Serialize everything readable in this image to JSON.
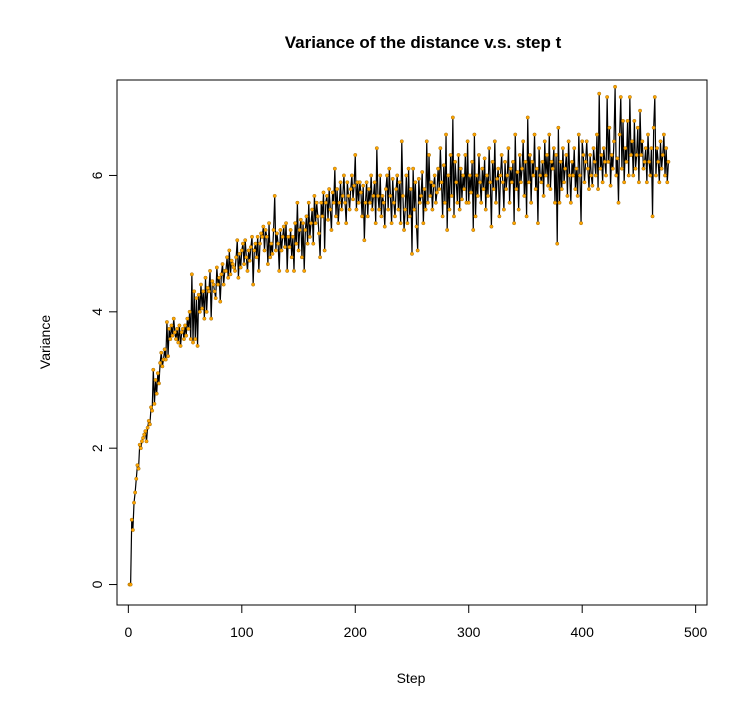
{
  "chart_data": {
    "type": "line",
    "title": "Variance of the distance v.s. step t",
    "xlabel": "Step",
    "ylabel": "Variance",
    "xlim": [
      -10,
      510
    ],
    "ylim": [
      -0.3,
      7.4
    ],
    "x_ticks": [
      0,
      100,
      200,
      300,
      400,
      500
    ],
    "y_ticks": [
      0,
      2,
      4,
      6
    ],
    "grid": false,
    "legend": "none",
    "line_color": "#000000",
    "point_color": "#ffa500",
    "point_edge_color": "#8a5a00",
    "series": [
      {
        "x_start": 1,
        "x_step": 1,
        "values": [
          0.0,
          0.0,
          0.95,
          0.8,
          1.2,
          1.35,
          1.55,
          1.75,
          1.7,
          2.05,
          2.0,
          2.1,
          2.15,
          2.2,
          2.25,
          2.1,
          2.3,
          2.4,
          2.35,
          2.6,
          2.55,
          3.15,
          2.65,
          3.0,
          2.8,
          3.1,
          2.95,
          3.25,
          3.4,
          3.2,
          3.3,
          3.45,
          3.3,
          3.85,
          3.35,
          3.75,
          3.6,
          3.8,
          3.65,
          3.9,
          3.7,
          3.6,
          3.75,
          3.55,
          3.8,
          3.5,
          3.7,
          3.75,
          3.6,
          3.8,
          3.65,
          3.9,
          3.75,
          4.0,
          3.6,
          4.55,
          3.55,
          4.3,
          3.6,
          4.2,
          3.5,
          4.25,
          4.0,
          4.4,
          4.05,
          4.3,
          3.9,
          4.5,
          4.0,
          4.35,
          4.3,
          4.6,
          3.9,
          4.45,
          4.4,
          4.3,
          4.2,
          4.65,
          4.4,
          4.5,
          4.15,
          4.55,
          4.7,
          4.4,
          4.6,
          4.6,
          4.8,
          4.5,
          4.9,
          4.55,
          4.75,
          4.7,
          4.65,
          4.6,
          4.8,
          5.05,
          4.5,
          4.85,
          4.65,
          4.9,
          5.0,
          4.7,
          5.05,
          4.8,
          4.6,
          4.9,
          4.75,
          4.95,
          5.1,
          4.4,
          4.9,
          5.0,
          4.8,
          5.1,
          4.6,
          5.0,
          5.15,
          5.1,
          5.25,
          4.9,
          5.2,
          5.1,
          4.7,
          5.3,
          4.8,
          5.0,
          4.85,
          5.2,
          5.7,
          4.9,
          5.15,
          5.0,
          4.6,
          5.2,
          4.9,
          5.1,
          5.25,
          4.95,
          5.3,
          4.6,
          5.1,
          4.95,
          5.2,
          4.8,
          5.1,
          4.6,
          5.3,
          5.0,
          5.6,
          4.9,
          5.2,
          5.35,
          4.8,
          5.3,
          4.6,
          5.2,
          5.4,
          5.0,
          5.6,
          5.1,
          5.3,
          5.5,
          5.0,
          5.7,
          5.3,
          5.6,
          5.4,
          5.15,
          4.8,
          5.6,
          5.4,
          5.75,
          4.9,
          5.6,
          5.7,
          5.35,
          5.8,
          5.5,
          5.2,
          5.75,
          5.6,
          6.1,
          5.4,
          5.8,
          5.3,
          5.6,
          5.9,
          5.5,
          5.7,
          6.0,
          5.6,
          5.3,
          5.9,
          5.7,
          5.5,
          5.8,
          6.0,
          5.65,
          5.85,
          6.3,
          5.5,
          5.9,
          5.6,
          5.9,
          5.75,
          5.4,
          5.85,
          5.05,
          5.6,
          5.9,
          5.4,
          5.8,
          5.6,
          6.0,
          5.5,
          5.7,
          5.9,
          5.3,
          6.4,
          5.7,
          5.5,
          6.0,
          5.4,
          5.7,
          5.6,
          5.25,
          5.8,
          6.0,
          5.5,
          6.1,
          5.7,
          5.3,
          5.95,
          5.6,
          5.4,
          5.8,
          6.0,
          5.5,
          5.9,
          5.3,
          6.5,
          5.7,
          5.2,
          5.5,
          6.0,
          5.3,
          6.1,
          5.4,
          5.8,
          4.85,
          6.1,
          5.5,
          5.9,
          5.25,
          4.9,
          5.95,
          5.6,
          5.7,
          6.05,
          5.3,
          5.8,
          5.5,
          6.5,
          5.6,
          6.3,
          5.7,
          5.9,
          5.5,
          5.85,
          6.0,
          5.6,
          5.75,
          6.1,
          5.8,
          6.4,
          5.9,
          5.4,
          6.15,
          5.6,
          6.6,
          5.2,
          6.0,
          5.5,
          6.3,
          5.7,
          6.85,
          5.4,
          6.2,
          5.9,
          5.6,
          6.3,
          5.5,
          6.1,
          5.65,
          6.0,
          5.8,
          6.3,
          5.6,
          6.5,
          5.6,
          6.0,
          5.75,
          6.2,
          5.2,
          6.6,
          5.4,
          6.0,
          5.7,
          6.3,
          5.9,
          5.6,
          6.1,
          5.8,
          6.25,
          5.5,
          6.0,
          5.7,
          6.4,
          5.9,
          5.25,
          6.2,
          5.8,
          6.5,
          5.6,
          5.95,
          6.1,
          5.4,
          6.0,
          6.3,
          5.9,
          5.5,
          6.2,
          5.8,
          6.0,
          6.4,
          5.6,
          6.1,
          5.9,
          6.2,
          5.3,
          6.6,
          5.8,
          6.05,
          5.5,
          6.3,
          5.9,
          6.1,
          6.5,
          5.7,
          6.2,
          5.4,
          6.85,
          5.9,
          6.3,
          5.6,
          6.2,
          6.0,
          6.6,
          5.8,
          6.1,
          5.3,
          6.4,
          6.0,
          5.9,
          6.2,
          5.7,
          6.5,
          6.0,
          6.3,
          5.85,
          6.6,
          5.8,
          6.2,
          6.1,
          6.4,
          5.6,
          6.3,
          5.0,
          6.7,
          5.6,
          6.2,
          5.8,
          6.4,
          5.9,
          6.1,
          6.3,
          5.7,
          6.5,
          6.0,
          5.6,
          6.2,
          6.0,
          6.4,
          5.8,
          6.1,
          5.7,
          6.6,
          6.0,
          5.3,
          6.5,
          6.3,
          5.9,
          6.2,
          6.5,
          6.1,
          5.8,
          6.3,
          6.0,
          5.85,
          6.4,
          6.2,
          6.0,
          6.6,
          5.8,
          7.2,
          6.1,
          6.3,
          5.9,
          6.4,
          6.2,
          6.0,
          7.15,
          6.2,
          6.7,
          5.85,
          6.3,
          6.1,
          6.5,
          7.3,
          6.0,
          6.25,
          5.6,
          6.6,
          7.15,
          6.1,
          6.8,
          5.9,
          6.4,
          6.2,
          6.8,
          6.0,
          7.15,
          6.3,
          6.5,
          6.0,
          6.8,
          6.1,
          6.3,
          6.7,
          5.9,
          6.95,
          6.3,
          6.5,
          6.1,
          6.2,
          6.4,
          5.9,
          6.6,
          6.2,
          6.0,
          6.4,
          5.4,
          6.7,
          7.15,
          6.0,
          6.4,
          6.2,
          5.9,
          6.5,
          6.1,
          6.3,
          6.6,
          6.0,
          6.4,
          5.9,
          6.2
        ]
      }
    ]
  }
}
